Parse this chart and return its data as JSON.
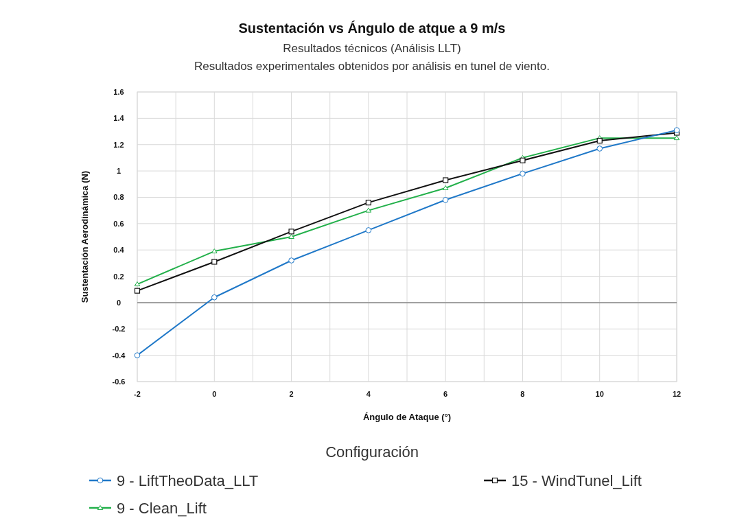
{
  "chart_data": {
    "type": "line",
    "title": "Sustentación vs Ángulo de atque a 9 m/s",
    "subtitle": "Resultados técnicos (Análisis LLT)\nResultados experimentales obtenidos por análisis en tunel de viento.",
    "xlabel": "Ángulo de Ataque (°)",
    "ylabel": "Sustentación Aerodinámica (N)",
    "legend_title": "Configuración",
    "x": [
      -2,
      0,
      2,
      4,
      6,
      8,
      10,
      12
    ],
    "series": [
      {
        "name": "9 - LiftTheoData_LLT",
        "color": "#1f78c8",
        "marker": "circle",
        "values": [
          -0.4,
          0.04,
          0.32,
          0.55,
          0.78,
          0.98,
          1.17,
          1.31
        ]
      },
      {
        "name": "15 - WindTunel_Lift",
        "color": "#111111",
        "marker": "square",
        "values": [
          0.09,
          0.31,
          0.54,
          0.76,
          0.93,
          1.08,
          1.23,
          1.29
        ]
      },
      {
        "name": "9 - Clean_Lift",
        "color": "#22b04a",
        "marker": "triangle",
        "values": [
          0.14,
          0.39,
          0.5,
          0.7,
          0.87,
          1.1,
          1.25,
          1.25
        ]
      }
    ],
    "xlim": [
      -2,
      12
    ],
    "xticks": [
      -2,
      {
        "value": -1,
        "label": null
      },
      0,
      {
        "value": 1,
        "label": null
      },
      2,
      {
        "value": 3,
        "label": null
      },
      4,
      {
        "value": 5,
        "label": null
      },
      6,
      {
        "value": 7,
        "label": null
      },
      8,
      {
        "value": 9,
        "label": null
      },
      10,
      {
        "value": 11,
        "label": null
      },
      12
    ],
    "ylim": [
      -0.6,
      1.6
    ],
    "yticks": [
      -0.6,
      -0.4,
      -0.2,
      0,
      0.2,
      0.4,
      0.6,
      0.8,
      1,
      1.2,
      1.4,
      1.6
    ],
    "ref_lines": [
      {
        "axis": "y",
        "value": 0,
        "color": "#888888"
      }
    ],
    "grid": true,
    "legend": "bottom",
    "line_style": "solid"
  }
}
